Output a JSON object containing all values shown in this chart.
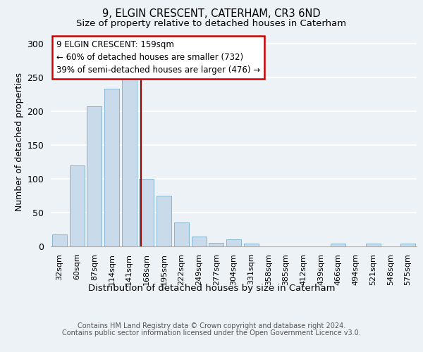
{
  "title1": "9, ELGIN CRESCENT, CATERHAM, CR3 6ND",
  "title2": "Size of property relative to detached houses in Caterham",
  "xlabel": "Distribution of detached houses by size in Caterham",
  "ylabel": "Number of detached properties",
  "categories": [
    "32sqm",
    "60sqm",
    "87sqm",
    "114sqm",
    "141sqm",
    "168sqm",
    "195sqm",
    "222sqm",
    "249sqm",
    "277sqm",
    "304sqm",
    "331sqm",
    "358sqm",
    "385sqm",
    "412sqm",
    "439sqm",
    "466sqm",
    "494sqm",
    "521sqm",
    "548sqm",
    "575sqm"
  ],
  "values": [
    18,
    120,
    207,
    233,
    248,
    100,
    75,
    35,
    15,
    5,
    10,
    4,
    0,
    0,
    0,
    0,
    4,
    0,
    4,
    0,
    4
  ],
  "bar_color": "#c9daea",
  "bar_edge_color": "#88b4d0",
  "annotation_line1": "9 ELGIN CRESCENT: 159sqm",
  "annotation_line2": "← 60% of detached houses are smaller (732)",
  "annotation_line3": "39% of semi-detached houses are larger (476) →",
  "vline_color": "#990000",
  "ylim": [
    0,
    310
  ],
  "yticks": [
    0,
    50,
    100,
    150,
    200,
    250,
    300
  ],
  "footer_line1": "Contains HM Land Registry data © Crown copyright and database right 2024.",
  "footer_line2": "Contains public sector information licensed under the Open Government Licence v3.0.",
  "bg_color": "#edf2f7",
  "fig_bg": "#edf2f7",
  "vline_pos": 4.667,
  "title1_fontsize": 10.5,
  "title2_fontsize": 9.5,
  "xlabel_fontsize": 9.5,
  "ylabel_fontsize": 9,
  "annotation_fontsize": 8.5,
  "footer_fontsize": 7,
  "ytick_fontsize": 9,
  "xtick_fontsize": 8
}
